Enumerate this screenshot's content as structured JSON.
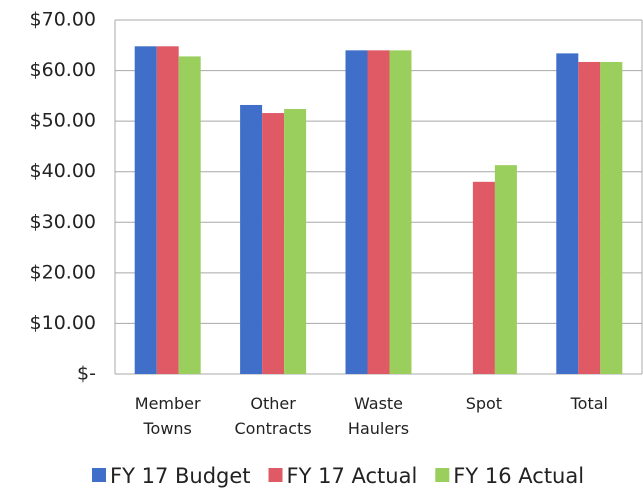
{
  "chart_data": {
    "type": "bar",
    "categories": [
      "Member Towns",
      "Other Contracts",
      "Waste Haulers",
      "Spot",
      "Total"
    ],
    "series": [
      {
        "name": "FY 17 Budget",
        "color": "#3f6fc8",
        "values": [
          64.8,
          53.2,
          64.0,
          null,
          63.4
        ]
      },
      {
        "name": "FY 17 Actual",
        "color": "#e05a66",
        "values": [
          64.8,
          51.6,
          64.0,
          38.0,
          61.7
        ]
      },
      {
        "name": "FY 16 Actual",
        "color": "#9bcf5d",
        "values": [
          62.8,
          52.4,
          64.0,
          41.3,
          61.7
        ]
      }
    ],
    "ylim": [
      0,
      70
    ],
    "yticks": [
      {
        "value": 0,
        "label": "$-"
      },
      {
        "value": 10,
        "label": "$10.00"
      },
      {
        "value": 20,
        "label": "$20.00"
      },
      {
        "value": 30,
        "label": "$30.00"
      },
      {
        "value": 40,
        "label": "$40.00"
      },
      {
        "value": 50,
        "label": "$50.00"
      },
      {
        "value": 60,
        "label": "$60.00"
      },
      {
        "value": 70,
        "label": "$70.00"
      }
    ],
    "grid": true,
    "legend": "bottom"
  }
}
